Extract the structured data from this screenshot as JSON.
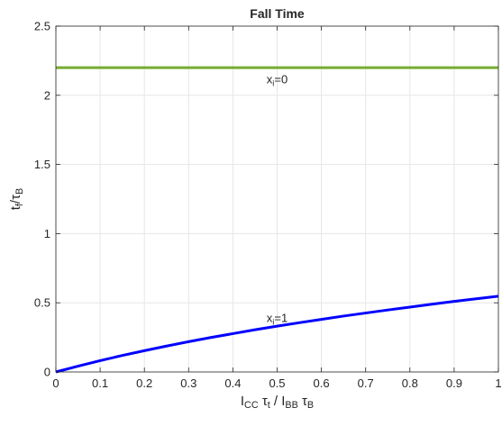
{
  "chart_data": {
    "type": "line",
    "title": "Fall Time",
    "xlabel": {
      "parts": [
        {
          "text": "I",
          "style": "normal"
        },
        {
          "text": "CC",
          "style": "sub"
        },
        {
          "text": " τ",
          "style": "normal"
        },
        {
          "text": "t",
          "style": "sub"
        },
        {
          "text": " / I",
          "style": "normal"
        },
        {
          "text": "BB",
          "style": "sub"
        },
        {
          "text": " τ",
          "style": "normal"
        },
        {
          "text": "B",
          "style": "sub"
        }
      ]
    },
    "ylabel": {
      "parts": [
        {
          "text": "t",
          "style": "normal"
        },
        {
          "text": "f",
          "style": "sub"
        },
        {
          "text": "/τ",
          "style": "normal"
        },
        {
          "text": "B",
          "style": "sub"
        }
      ]
    },
    "xlim": [
      0,
      1
    ],
    "ylim": [
      0,
      2.5
    ],
    "xticks": [
      0,
      0.1,
      0.2,
      0.3,
      0.4,
      0.5,
      0.6,
      0.7,
      0.8,
      0.9,
      1
    ],
    "xtick_labels": [
      "0",
      "0.1",
      "0.2",
      "0.3",
      "0.4",
      "0.5",
      "0.6",
      "0.7",
      "0.8",
      "0.9",
      "1"
    ],
    "yticks": [
      0,
      0.5,
      1,
      1.5,
      2,
      2.5
    ],
    "ytick_labels": [
      "0",
      "0.5",
      "1",
      "1.5",
      "2",
      "2.5"
    ],
    "grid": true,
    "series": [
      {
        "color": "#77ac30",
        "x": [
          0,
          0.1,
          0.2,
          0.3,
          0.4,
          0.5,
          0.6,
          0.7,
          0.8,
          0.9,
          1
        ],
        "y": [
          2.2,
          2.2,
          2.2,
          2.2,
          2.2,
          2.2,
          2.2,
          2.2,
          2.2,
          2.2,
          2.2
        ]
      },
      {
        "color": "#0000ff",
        "x": [
          0,
          0.05,
          0.1,
          0.15,
          0.2,
          0.25,
          0.3,
          0.35,
          0.4,
          0.45,
          0.5,
          0.55,
          0.6,
          0.65,
          0.7,
          0.75,
          0.8,
          0.85,
          0.9,
          0.95,
          1
        ],
        "y": [
          0,
          0.042,
          0.082,
          0.119,
          0.154,
          0.187,
          0.219,
          0.249,
          0.277,
          0.305,
          0.331,
          0.356,
          0.38,
          0.404,
          0.426,
          0.448,
          0.469,
          0.49,
          0.51,
          0.529,
          0.548
        ]
      }
    ],
    "annotations": [
      {
        "x": 0.5,
        "y": 2.12,
        "parts": [
          {
            "text": "x",
            "style": "normal"
          },
          {
            "text": "i",
            "style": "sub"
          },
          {
            "text": "=0",
            "style": "normal"
          }
        ]
      },
      {
        "x": 0.5,
        "y": 0.395,
        "parts": [
          {
            "text": "x",
            "style": "normal"
          },
          {
            "text": "i",
            "style": "sub"
          },
          {
            "text": "=1",
            "style": "normal"
          }
        ]
      }
    ]
  }
}
